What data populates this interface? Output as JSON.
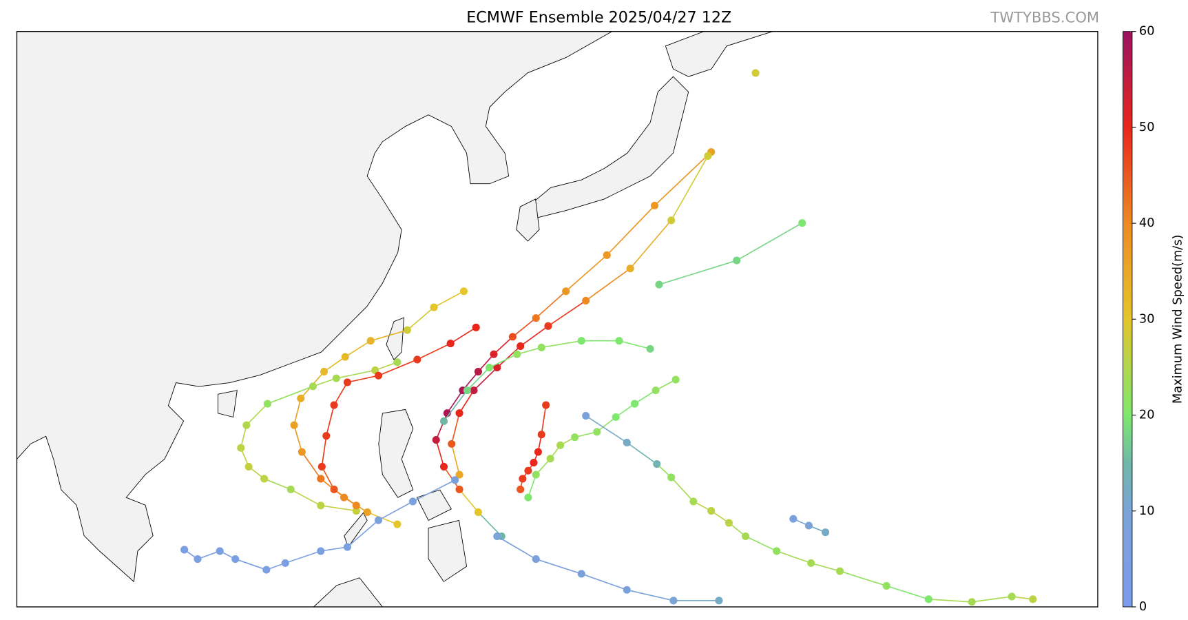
{
  "title": "ECMWF Ensemble 2025/04/27 12Z",
  "watermark": "TWTYBBS.COM",
  "colorbar": {
    "label": "Maximum Wind Speed(m/s)",
    "lim": [
      0,
      60
    ],
    "ticks": [
      0,
      10,
      20,
      30,
      40,
      50,
      60
    ],
    "colormap": [
      {
        "value": 0,
        "color": "#7b9bee"
      },
      {
        "value": 10,
        "color": "#7aa3d8"
      },
      {
        "value": 15,
        "color": "#6fb8a8"
      },
      {
        "value": 20,
        "color": "#7ee86e"
      },
      {
        "value": 30,
        "color": "#e4c52a"
      },
      {
        "value": 40,
        "color": "#ee8a22"
      },
      {
        "value": 50,
        "color": "#e8261c"
      },
      {
        "value": 60,
        "color": "#9c1262"
      }
    ]
  },
  "tracks": [
    {
      "lon": [
        149.6,
        144.5,
        140.2,
        136.5,
        133.8,
        131.7,
        130.0,
        128.6,
        127.2,
        125.8,
        124.8,
        125.5,
        126.9,
        128.6,
        130.7
      ],
      "lat": [
        38.0,
        34.0,
        30.3,
        27.6,
        25.6,
        24.2,
        22.9,
        21.6,
        20.2,
        18.5,
        16.5,
        14.5,
        12.8,
        11.1,
        9.3
      ],
      "wind": [
        36,
        38,
        38,
        38,
        42,
        46,
        52,
        56,
        58,
        58,
        55,
        50,
        45,
        30,
        15
      ]
    },
    {
      "lon": [
        149.3,
        146.0,
        142.3,
        138.3,
        134.9,
        132.4,
        130.3,
        128.2,
        126.9,
        126.2,
        126.9
      ],
      "lat": [
        37.7,
        32.9,
        29.3,
        26.9,
        25.0,
        23.5,
        21.9,
        20.2,
        18.5,
        16.2,
        13.9
      ],
      "wind": [
        28,
        28,
        34,
        40,
        48,
        50,
        52,
        55,
        50,
        45,
        35
      ]
    },
    {
      "lon": [
        157.8,
        151.9,
        144.9
      ],
      "lat": [
        32.7,
        29.9,
        28.1
      ],
      "wind": [
        20,
        18,
        18
      ]
    },
    {
      "lon": [
        144.1,
        141.3,
        137.9,
        134.3,
        132.1,
        129.6,
        127.6,
        125.5
      ],
      "lat": [
        23.3,
        23.9,
        23.9,
        23.4,
        22.9,
        21.9,
        20.2,
        17.9
      ],
      "wind": [
        18,
        20,
        20,
        22,
        22,
        20,
        18,
        15
      ]
    },
    {
      "lon": [
        127.3,
        124.6,
        122.2,
        118.9,
        116.6,
        114.7,
        112.6,
        112.0,
        112.7,
        114.4,
        116.5,
        118.6,
        121.3
      ],
      "lat": [
        27.6,
        26.4,
        24.7,
        23.9,
        22.7,
        21.6,
        19.6,
        17.6,
        15.6,
        13.6,
        12.2,
        11.1,
        10.2
      ],
      "wind": [
        30,
        30,
        28,
        33,
        32,
        32,
        34,
        36,
        38,
        42,
        40,
        36,
        30
      ]
    },
    {
      "lon": [
        121.3,
        119.3,
        115.8,
        113.7,
        109.6,
        107.7,
        107.2,
        107.9,
        109.3,
        111.7,
        114.4,
        117.6
      ],
      "lat": [
        22.3,
        21.7,
        21.1,
        20.5,
        19.2,
        17.6,
        15.9,
        14.5,
        13.6,
        12.8,
        11.6,
        11.2
      ],
      "wind": [
        24,
        26,
        24,
        24,
        22,
        25,
        26,
        27,
        26,
        24,
        26,
        27
      ]
    },
    {
      "lon": [
        146.4,
        144.6,
        142.7,
        141.0,
        139.3,
        137.3,
        136.0,
        135.1,
        133.8,
        133.1
      ],
      "lat": [
        21.0,
        20.2,
        19.2,
        18.2,
        17.1,
        16.7,
        16.1,
        15.1,
        13.9,
        12.2
      ],
      "wind": [
        22,
        22,
        20,
        20,
        22,
        22,
        24,
        24,
        22,
        20
      ]
    },
    {
      "lon": [
        138.3,
        142.0,
        144.7,
        146.0,
        148.0,
        149.6,
        151.2,
        152.7,
        155.5,
        158.6,
        161.2,
        165.4,
        169.2,
        173.1,
        176.7,
        178.6
      ],
      "lat": [
        18.3,
        16.3,
        14.7,
        13.7,
        11.9,
        11.2,
        10.3,
        9.3,
        8.2,
        7.3,
        6.7,
        5.6,
        4.6,
        4.4,
        4.8,
        4.6
      ],
      "wind": [
        8,
        12,
        14,
        22,
        24,
        26,
        26,
        24,
        22,
        24,
        24,
        22,
        20,
        24,
        24,
        26
      ]
    },
    {
      "lon": [
        134.7,
        134.3,
        134.0,
        133.6,
        133.1,
        132.6,
        132.4
      ],
      "lat": [
        19.1,
        16.9,
        15.6,
        14.8,
        14.2,
        13.6,
        12.8
      ],
      "wind": [
        48,
        48,
        50,
        50,
        48,
        48,
        45
      ]
    },
    {
      "lon": [
        128.4,
        126.1,
        123.1,
        119.6,
        116.8,
        115.6,
        114.9,
        114.5,
        115.6,
        117.6
      ],
      "lat": [
        24.9,
        23.7,
        22.5,
        21.3,
        20.8,
        19.1,
        16.8,
        14.5,
        12.8,
        11.6
      ],
      "wind": [
        50,
        50,
        48,
        48,
        48,
        48,
        48,
        48,
        45,
        40
      ]
    },
    {
      "lon": [
        126.5,
        122.7,
        119.6,
        116.8,
        114.4,
        111.2,
        109.5,
        106.7,
        105.3,
        103.3,
        102.1
      ],
      "lat": [
        13.5,
        11.9,
        10.5,
        8.5,
        8.2,
        7.3,
        6.8,
        7.6,
        8.2,
        7.6,
        8.3
      ],
      "wind": [
        8,
        8,
        8,
        6,
        6,
        6,
        5,
        5,
        5,
        5,
        5
      ]
    },
    {
      "lon": [
        130.3,
        133.8,
        137.9,
        142.0,
        146.2,
        150.3
      ],
      "lat": [
        9.3,
        7.6,
        6.5,
        5.3,
        4.5,
        4.5
      ],
      "wind": [
        10,
        8,
        8,
        8,
        10,
        12
      ]
    },
    {
      "lon": [
        157.0,
        158.4,
        159.9
      ],
      "lat": [
        10.6,
        10.1,
        9.6
      ],
      "wind": [
        8,
        10,
        12
      ]
    },
    {
      "lon": [
        153.6
      ],
      "lat": [
        43.9
      ],
      "wind": [
        28
      ]
    }
  ]
}
